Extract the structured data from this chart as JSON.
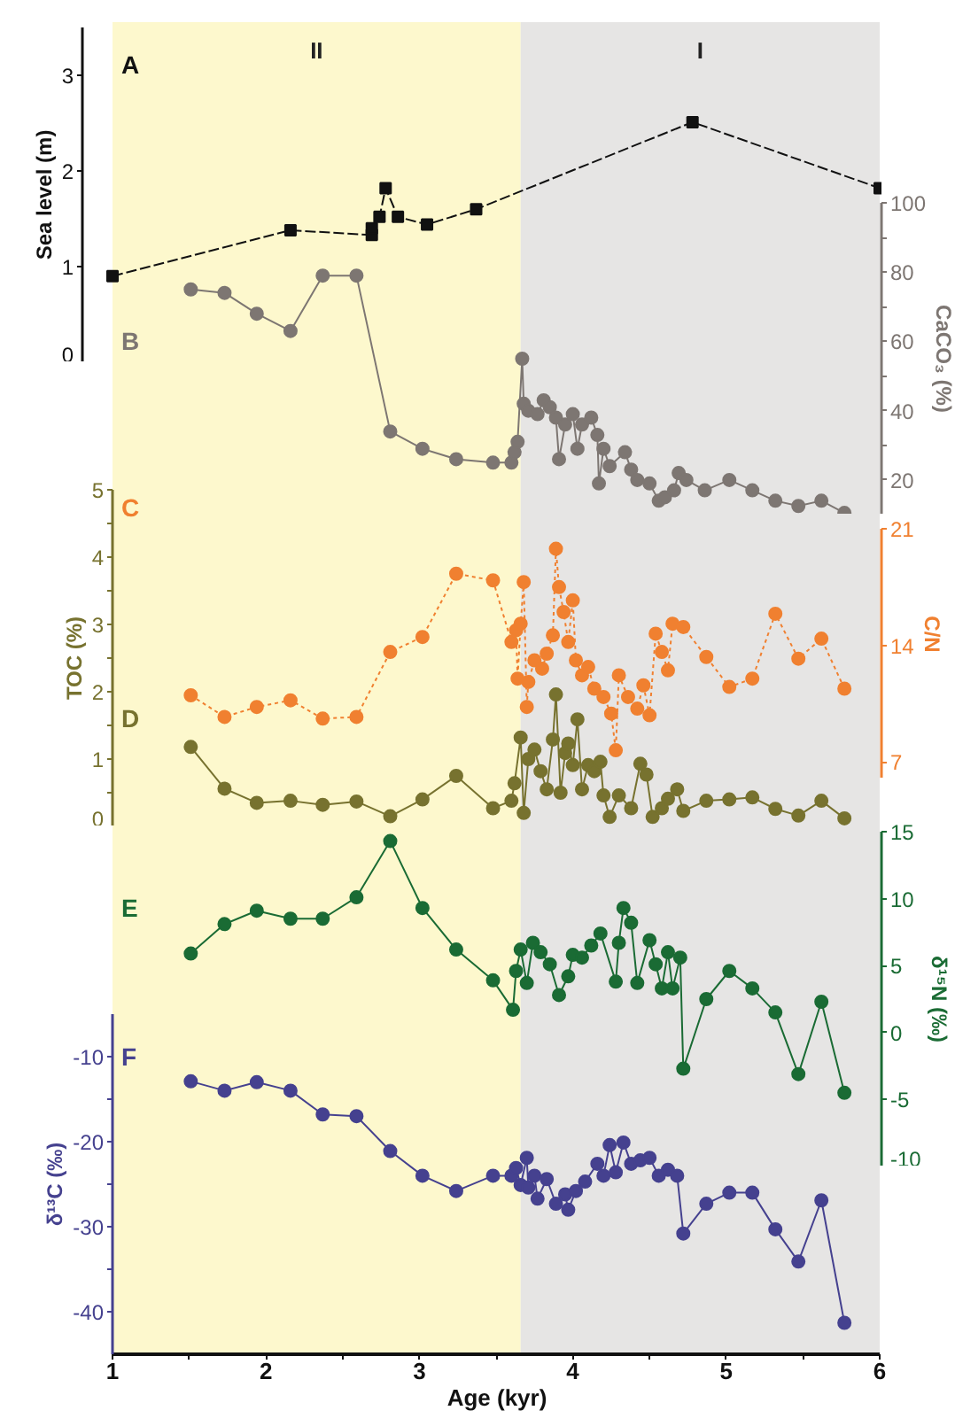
{
  "chart_data": [
    {
      "type": "line",
      "ylabel": "Sea level (m)",
      "xlim": [
        1,
        6
      ],
      "ylim": [
        0,
        3.5
      ],
      "yticks": [
        0,
        1,
        2,
        3
      ],
      "tick_labels": "y",
      "marker": "square",
      "line_style": "dashed",
      "annotations": [
        "A"
      ],
      "series": [
        {
          "color": "#111111",
          "x": [
            1.0,
            2.16,
            2.69,
            2.69,
            2.74,
            2.78,
            2.86,
            3.05,
            3.37,
            4.78,
            6.0
          ],
          "values": [
            0.9,
            1.38,
            1.33,
            1.4,
            1.52,
            1.82,
            1.52,
            1.44,
            1.6,
            2.51,
            1.82
          ]
        }
      ]
    },
    {
      "type": "line",
      "ylabel": "CaCO₃ (%)",
      "xlim": [
        1,
        6
      ],
      "ylim": [
        10,
        100
      ],
      "yticks": [
        20,
        {
          "value": 30,
          "label": null
        },
        40,
        {
          "value": 50,
          "label": null
        },
        60,
        {
          "value": 70,
          "label": null
        },
        80,
        {
          "value": 90,
          "label": null
        },
        100
      ],
      "tick_labels": "y",
      "marker": "circle",
      "line_style": "solid",
      "annotations": [
        "B"
      ],
      "series": [
        {
          "color": "#7d7672",
          "x": [
            1.51,
            1.73,
            1.94,
            2.16,
            2.37,
            2.59,
            2.81,
            3.02,
            3.24,
            3.48,
            3.6,
            3.62,
            3.64,
            3.67,
            3.68,
            3.71,
            3.77,
            3.81,
            3.85,
            3.89,
            3.91,
            3.95,
            4.0,
            4.03,
            4.06,
            4.12,
            4.16,
            4.17,
            4.2,
            4.24,
            4.34,
            4.38,
            4.42,
            4.5,
            4.56,
            4.6,
            4.66,
            4.69,
            4.74,
            4.86,
            5.02,
            5.17,
            5.32,
            5.47,
            5.62,
            5.77
          ],
          "values": [
            75,
            74,
            68,
            63,
            79,
            79,
            34,
            29,
            26,
            25,
            25,
            28,
            31,
            55,
            42,
            40,
            39,
            43,
            41,
            38,
            26,
            36,
            39,
            29,
            36,
            38,
            33,
            19,
            29,
            24,
            28,
            23,
            20,
            19,
            14,
            15,
            17,
            22,
            20,
            17,
            20,
            17,
            14,
            12.5,
            14,
            10.5
          ]
        }
      ]
    },
    {
      "type": "line",
      "ylabel": "C/N",
      "xlim": [
        1,
        6
      ],
      "ylim": [
        6,
        21
      ],
      "yticks": [
        7,
        14,
        21
      ],
      "tick_labels": "y",
      "marker": "circle",
      "line_style": "dotted",
      "annotations": [
        "C"
      ],
      "series": [
        {
          "color": "#f08030",
          "x": [
            1.51,
            1.73,
            1.94,
            2.16,
            2.37,
            2.59,
            2.81,
            3.02,
            3.24,
            3.48,
            3.6,
            3.63,
            3.64,
            3.66,
            3.68,
            3.7,
            3.71,
            3.75,
            3.8,
            3.83,
            3.87,
            3.89,
            3.91,
            3.94,
            3.97,
            4.0,
            4.02,
            4.06,
            4.1,
            4.14,
            4.2,
            4.25,
            4.28,
            4.3,
            4.36,
            4.42,
            4.46,
            4.5,
            4.54,
            4.58,
            4.62,
            4.65,
            4.72,
            4.87,
            5.02,
            5.17,
            5.32,
            5.47,
            5.62,
            5.77
          ],
          "values": [
            11.0,
            9.7,
            10.3,
            10.7,
            9.6,
            9.7,
            13.6,
            14.5,
            18.3,
            17.9,
            14.2,
            14.9,
            12.0,
            15.3,
            17.8,
            10.3,
            11.8,
            13.1,
            12.6,
            13.5,
            14.6,
            19.8,
            17.5,
            16.0,
            14.2,
            16.7,
            13.1,
            12.2,
            12.7,
            11.4,
            10.9,
            9.9,
            7.7,
            12.2,
            10.9,
            10.2,
            11.6,
            9.8,
            14.7,
            13.6,
            12.5,
            15.3,
            15.1,
            13.3,
            11.5,
            12.0,
            15.9,
            13.2,
            14.4,
            11.4
          ]
        }
      ]
    },
    {
      "type": "line",
      "ylabel": "TOC (%)",
      "xlim": [
        1,
        6
      ],
      "ylim": [
        0,
        5
      ],
      "yticks": [
        0,
        {
          "value": 0.5,
          "label": null
        },
        1,
        {
          "value": 1.5,
          "label": null
        },
        2,
        {
          "value": 2.5,
          "label": null
        },
        3,
        {
          "value": 3.5,
          "label": null
        },
        4,
        {
          "value": 4.5,
          "label": null
        },
        5
      ],
      "tick_labels": "y",
      "marker": "circle",
      "line_style": "solid",
      "annotations": [
        "D"
      ],
      "series": [
        {
          "color": "#77722f",
          "x": [
            1.51,
            1.73,
            1.94,
            2.16,
            2.37,
            2.59,
            2.81,
            3.02,
            3.24,
            3.48,
            3.6,
            3.62,
            3.66,
            3.68,
            3.71,
            3.75,
            3.79,
            3.83,
            3.87,
            3.89,
            3.92,
            3.95,
            3.97,
            4.0,
            4.03,
            4.06,
            4.1,
            4.14,
            4.18,
            4.2,
            4.24,
            4.3,
            4.38,
            4.44,
            4.48,
            4.52,
            4.58,
            4.62,
            4.68,
            4.72,
            4.87,
            5.02,
            5.17,
            5.32,
            5.47,
            5.62,
            5.77
          ],
          "values": [
            1.18,
            0.56,
            0.35,
            0.38,
            0.32,
            0.37,
            0.15,
            0.4,
            0.75,
            0.27,
            0.38,
            0.64,
            1.32,
            0.2,
            1.0,
            1.14,
            0.82,
            0.55,
            1.29,
            1.96,
            0.5,
            1.09,
            1.23,
            0.91,
            1.59,
            0.55,
            0.91,
            0.82,
            0.96,
            0.46,
            0.14,
            0.46,
            0.27,
            0.93,
            0.77,
            0.14,
            0.27,
            0.41,
            0.55,
            0.23,
            0.38,
            0.4,
            0.43,
            0.26,
            0.16,
            0.38,
            0.12
          ]
        }
      ]
    },
    {
      "type": "line",
      "ylabel": "δ¹⁵N (‰)",
      "xlim": [
        1,
        6
      ],
      "ylim": [
        -10,
        15
      ],
      "yticks": [
        -10,
        -5,
        0,
        5,
        10,
        15
      ],
      "tick_labels": "y",
      "marker": "circle",
      "line_style": "solid",
      "annotations": [
        "E"
      ],
      "series": [
        {
          "color": "#1a6b34",
          "x": [
            1.51,
            1.73,
            1.94,
            2.16,
            2.37,
            2.59,
            2.81,
            3.02,
            3.24,
            3.48,
            3.61,
            3.63,
            3.66,
            3.7,
            3.74,
            3.79,
            3.85,
            3.91,
            3.97,
            4.0,
            4.06,
            4.12,
            4.18,
            4.28,
            4.3,
            4.33,
            4.38,
            4.42,
            4.5,
            4.54,
            4.58,
            4.62,
            4.65,
            4.7,
            4.72,
            4.87,
            5.02,
            5.17,
            5.32,
            5.47,
            5.62,
            5.77
          ],
          "values": [
            5.9,
            8.1,
            9.1,
            8.5,
            8.5,
            10.1,
            14.3,
            9.3,
            6.2,
            3.9,
            1.7,
            4.6,
            6.2,
            3.7,
            6.7,
            6.0,
            5.1,
            2.8,
            4.2,
            5.8,
            5.6,
            6.5,
            7.4,
            3.8,
            6.7,
            9.3,
            8.2,
            3.7,
            6.9,
            5.1,
            3.3,
            6.0,
            3.3,
            5.6,
            -2.7,
            2.5,
            4.6,
            3.3,
            1.5,
            -3.1,
            2.3,
            -4.5
          ]
        }
      ]
    },
    {
      "type": "line",
      "ylabel": "δ¹³C (‰)",
      "xlabel": "Age (kyr)",
      "xlim": [
        1,
        6
      ],
      "xticks": [
        1,
        {
          "value": 1.5,
          "label": null
        },
        2,
        {
          "value": 2.5,
          "label": null
        },
        3,
        {
          "value": 3.5,
          "label": null
        },
        4,
        {
          "value": 4.5,
          "label": null
        },
        5,
        {
          "value": 5.5,
          "label": null
        },
        6
      ],
      "ylim": [
        -45,
        -5
      ],
      "yticks": [
        -40,
        {
          "value": -35,
          "label": null
        },
        -30,
        {
          "value": -25,
          "label": null
        },
        -20,
        {
          "value": -15,
          "label": null
        },
        -10
      ],
      "marker": "circle",
      "line_style": "solid",
      "annotations": [
        "F"
      ],
      "bands": [
        {
          "axis": "x",
          "from": 1,
          "to": 3.66,
          "label": "II",
          "color": "#fdf8cd"
        },
        {
          "axis": "x",
          "from": 3.66,
          "to": 6,
          "label": "I",
          "color": "#e6e5e4"
        }
      ],
      "series": [
        {
          "color": "#45418f",
          "x": [
            1.51,
            1.73,
            1.94,
            2.16,
            2.37,
            2.59,
            2.81,
            3.02,
            3.24,
            3.48,
            3.6,
            3.63,
            3.66,
            3.7,
            3.71,
            3.75,
            3.77,
            3.83,
            3.89,
            3.95,
            3.97,
            4.02,
            4.08,
            4.16,
            4.2,
            4.24,
            4.28,
            4.33,
            4.38,
            4.44,
            4.5,
            4.56,
            4.62,
            4.68,
            4.72,
            4.87,
            5.02,
            5.17,
            5.32,
            5.47,
            5.62,
            5.77
          ],
          "values": [
            -12.9,
            -14.0,
            -13.0,
            -14.0,
            -16.8,
            -17.0,
            -21.1,
            -24.0,
            -25.8,
            -24.0,
            -24.0,
            -23.1,
            -25.1,
            -21.9,
            -25.4,
            -24.0,
            -26.7,
            -24.4,
            -27.3,
            -26.2,
            -28.0,
            -25.8,
            -24.7,
            -22.6,
            -24.0,
            -20.4,
            -23.6,
            -20.1,
            -22.6,
            -22.2,
            -21.9,
            -24.0,
            -23.3,
            -24.0,
            -30.8,
            -27.3,
            -26.0,
            -26.0,
            -30.3,
            -34.1,
            -26.9,
            -41.3
          ]
        }
      ]
    }
  ]
}
